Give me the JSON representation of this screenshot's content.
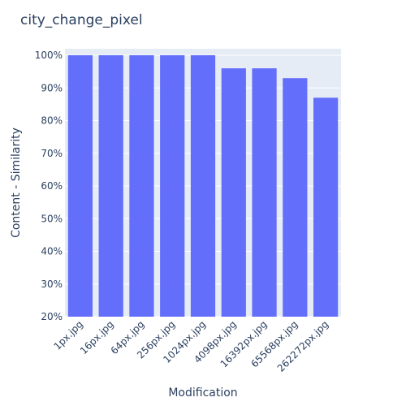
{
  "chart_data": {
    "type": "bar",
    "title": "city_change_pixel",
    "xlabel": "Modification",
    "ylabel": "Content - Similarity",
    "categories": [
      "1px.jpg",
      "16px.jpg",
      "64px.jpg",
      "256px.jpg",
      "1024px.jpg",
      "4098px.jpg",
      "16392px.jpg",
      "65568px.jpg",
      "262272px.jpg"
    ],
    "values": [
      1.0,
      1.0,
      1.0,
      1.0,
      1.0,
      0.96,
      0.96,
      0.93,
      0.87
    ],
    "ylim": [
      0.2,
      1.02
    ],
    "yticks": [
      0.2,
      0.3,
      0.4,
      0.5,
      0.6,
      0.7,
      0.8,
      0.9,
      1.0
    ],
    "ytick_labels": [
      "20%",
      "30%",
      "40%",
      "50%",
      "60%",
      "70%",
      "80%",
      "90%",
      "100%"
    ],
    "grid": true,
    "colors": {
      "bar": "#636efa",
      "plot_bg": "#e5ecf6",
      "grid": "#ffffff",
      "text": "#2a3f5f"
    }
  }
}
